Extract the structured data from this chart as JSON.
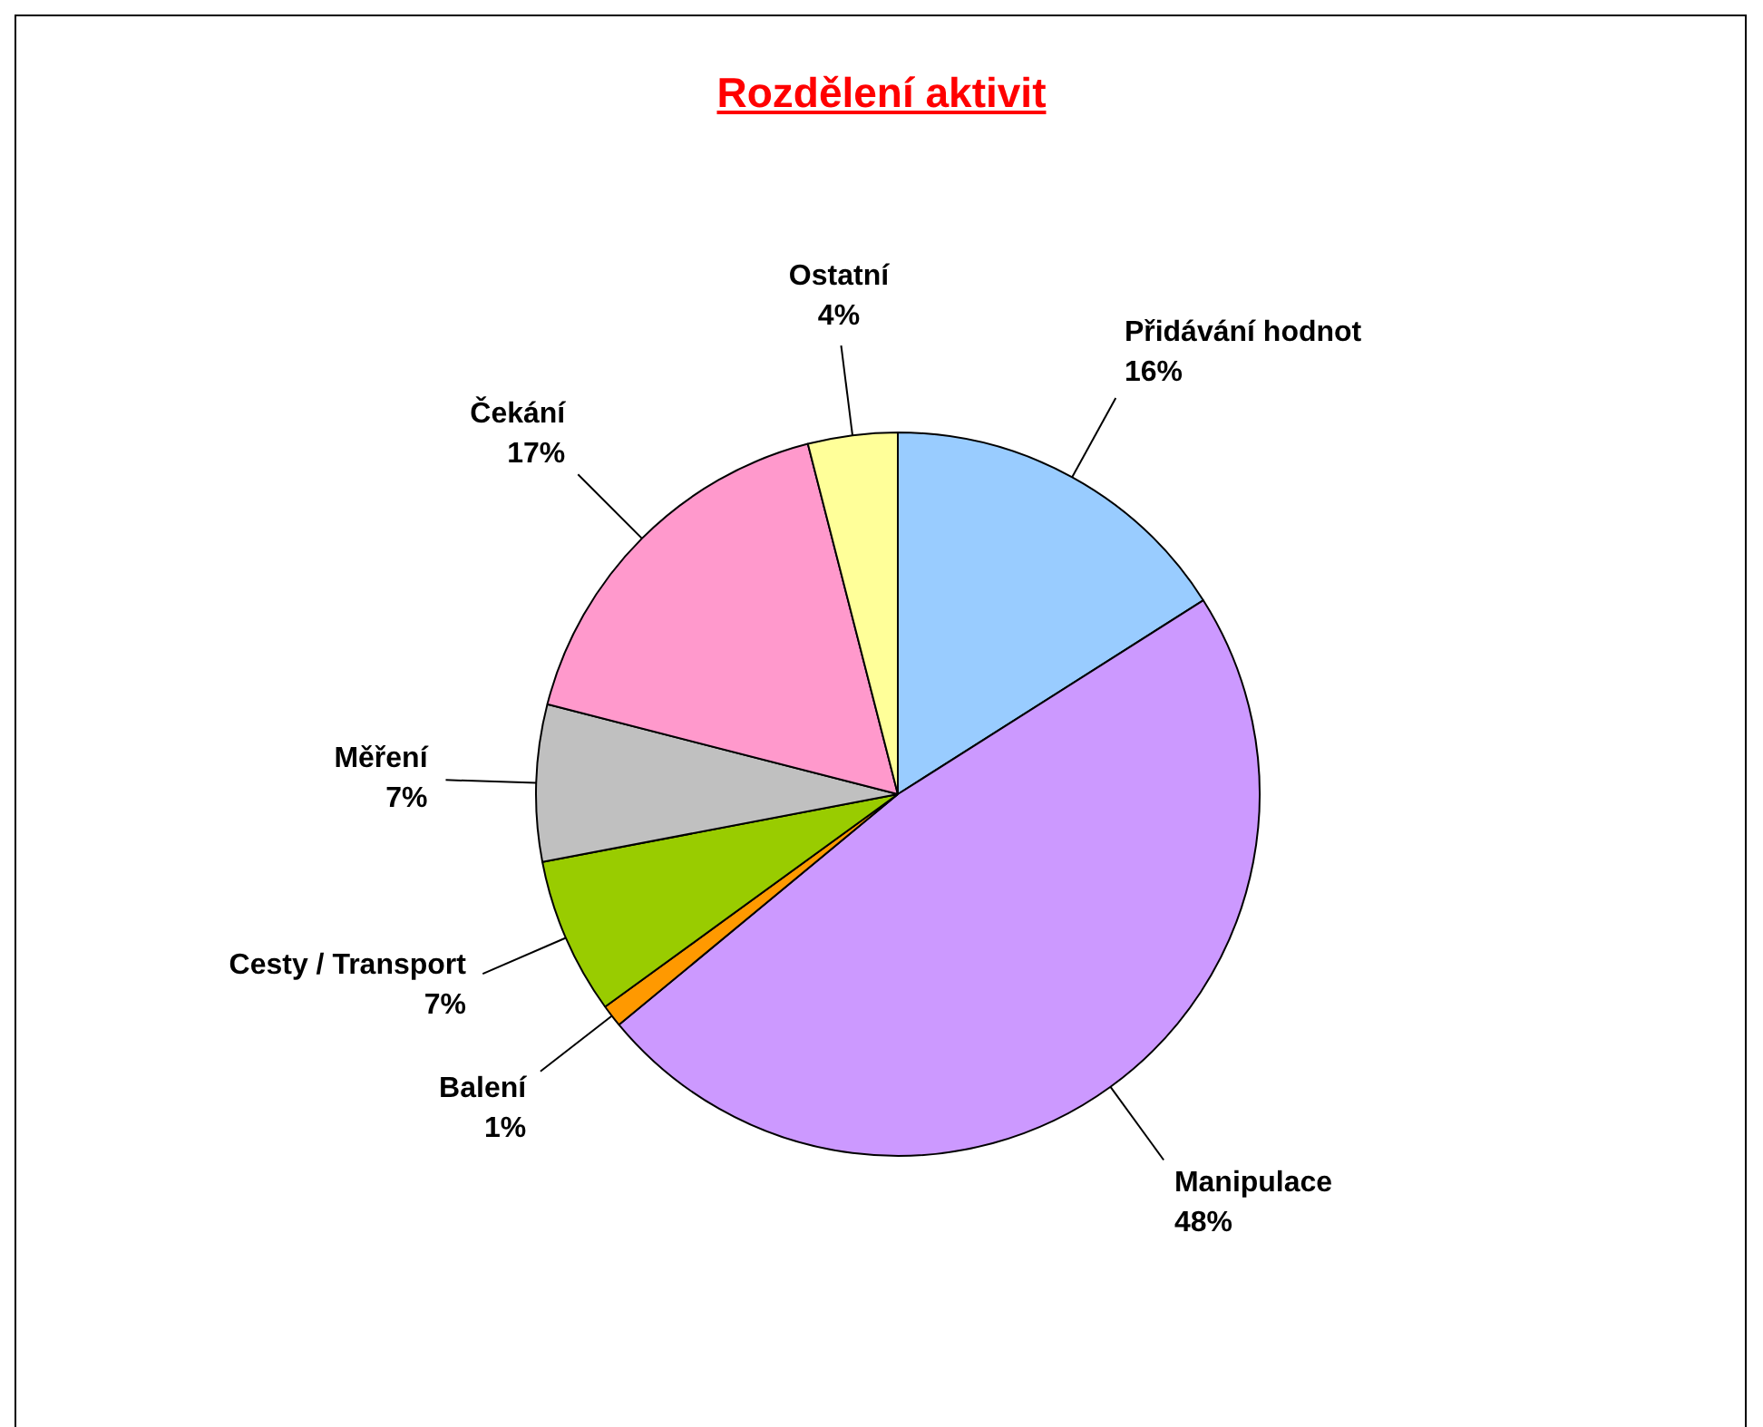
{
  "chart_data": {
    "type": "pie",
    "title": "Rozdělení aktivit",
    "categories": [
      "Přidávání hodnot",
      "Manipulace",
      "Balení",
      "Cesty / Transport",
      "Měření",
      "Čekání",
      "Ostatní"
    ],
    "values": [
      16,
      48,
      1,
      7,
      7,
      17,
      4
    ],
    "value_labels": [
      "16%",
      "48%",
      "1%",
      "7%",
      "7%",
      "17%",
      "4%"
    ],
    "colors": [
      "#99ccff",
      "#cc99ff",
      "#ff9900",
      "#99cc00",
      "#c0c0c0",
      "#ff99cc",
      "#ffff99"
    ],
    "legend": false
  }
}
